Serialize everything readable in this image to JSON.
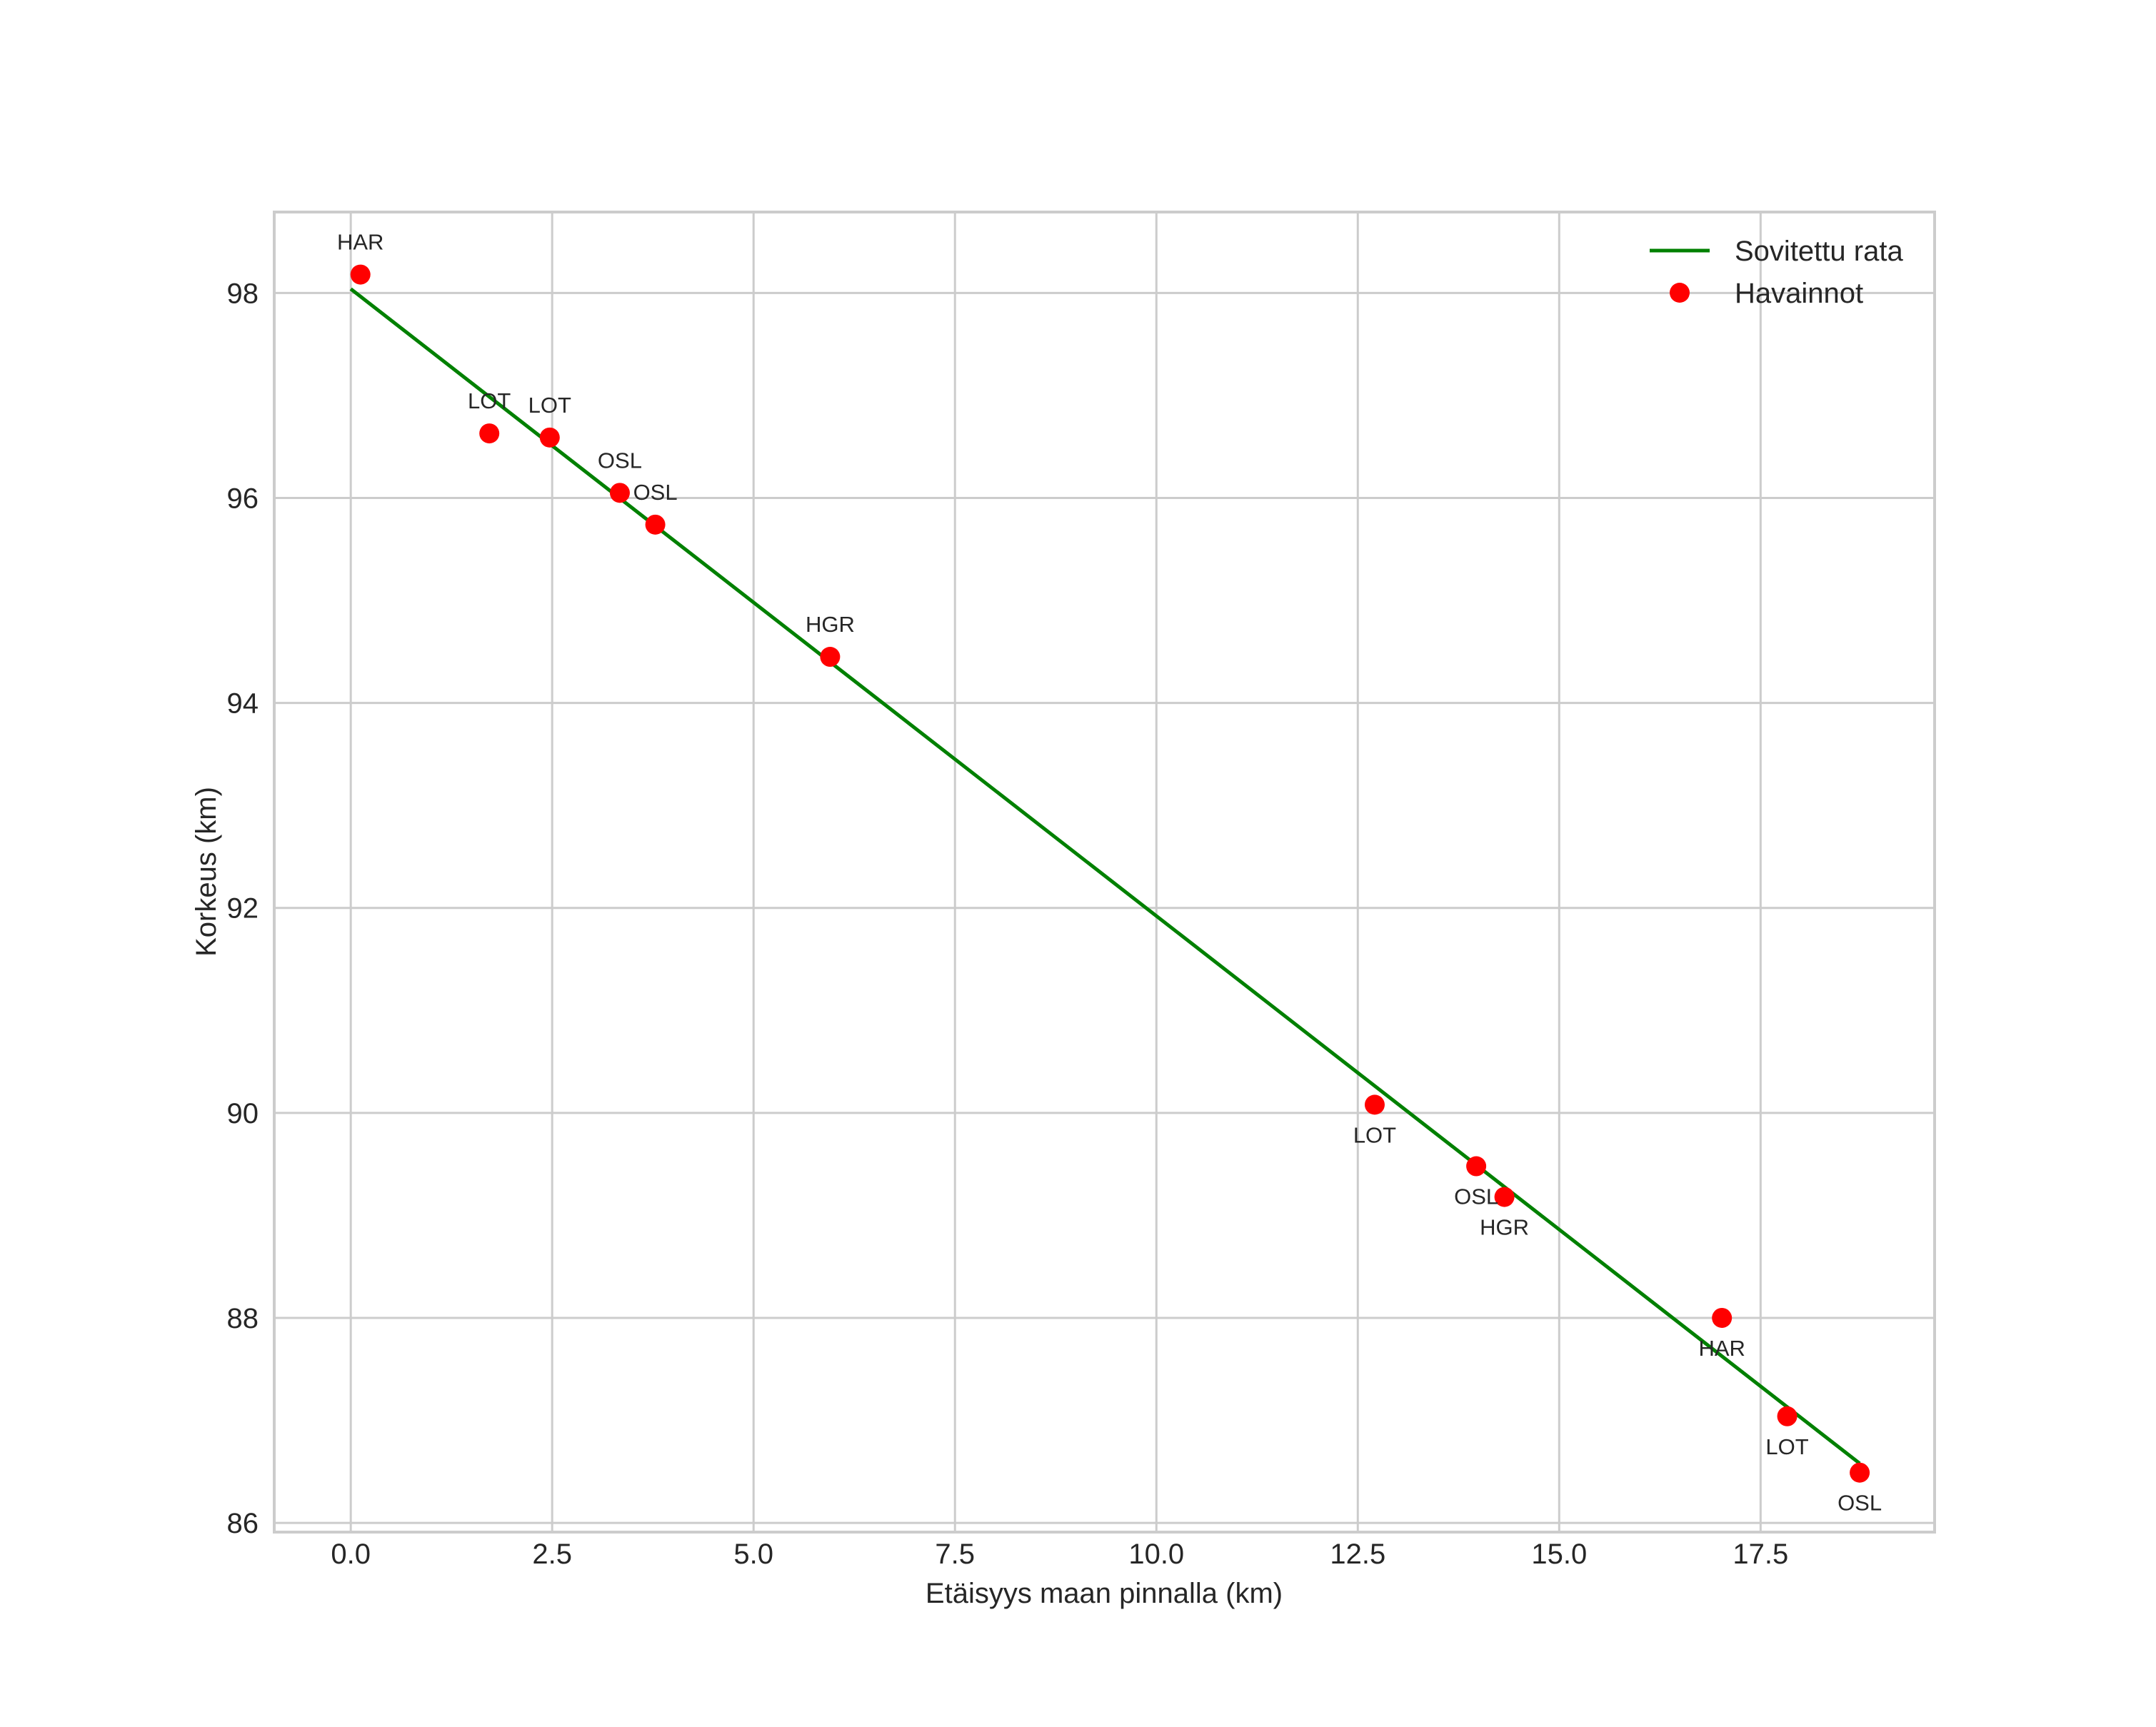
{
  "chart_data": {
    "type": "scatter",
    "title": "",
    "xlabel": "Etäisyys maan pinnalla (km)",
    "ylabel": "Korkeus (km)",
    "xlim": [
      -0.95,
      19.66
    ],
    "ylim": [
      85.91,
      98.79
    ],
    "xticks": [
      0.0,
      2.5,
      5.0,
      7.5,
      10.0,
      12.5,
      15.0,
      17.5
    ],
    "xtick_labels": [
      "0.0",
      "2.5",
      "5.0",
      "7.5",
      "10.0",
      "12.5",
      "15.0",
      "17.5"
    ],
    "yticks": [
      86,
      88,
      90,
      92,
      94,
      96,
      98
    ],
    "ytick_labels": [
      "86",
      "88",
      "90",
      "92",
      "94",
      "96",
      "98"
    ],
    "grid": true,
    "legend": {
      "position": "upper right",
      "entries": [
        {
          "label": "Sovitettu rata",
          "type": "line",
          "color": "#008000"
        },
        {
          "label": "Havainnot",
          "type": "marker",
          "color": "#ff0000"
        }
      ]
    },
    "series": [
      {
        "name": "Sovitettu rata",
        "type": "line",
        "color": "#008000",
        "x": [
          0.0,
          18.73
        ],
        "y": [
          98.04,
          86.58
        ]
      },
      {
        "name": "Havainnot",
        "type": "scatter",
        "color": "#ff0000",
        "points": [
          {
            "x": 0.12,
            "y": 98.18,
            "label": "HAR",
            "label_pos": "above"
          },
          {
            "x": 1.72,
            "y": 96.63,
            "label": "LOT",
            "label_pos": "above"
          },
          {
            "x": 2.47,
            "y": 96.59,
            "label": "LOT",
            "label_pos": "above"
          },
          {
            "x": 3.34,
            "y": 96.05,
            "label": "OSL",
            "label_pos": "above"
          },
          {
            "x": 3.78,
            "y": 95.74,
            "label": "OSL",
            "label_pos": "above"
          },
          {
            "x": 5.95,
            "y": 94.45,
            "label": "HGR",
            "label_pos": "above"
          },
          {
            "x": 12.71,
            "y": 90.08,
            "label": "LOT",
            "label_pos": "below"
          },
          {
            "x": 13.97,
            "y": 89.48,
            "label": "OSL",
            "label_pos": "below"
          },
          {
            "x": 14.32,
            "y": 89.18,
            "label": "HGR",
            "label_pos": "below"
          },
          {
            "x": 17.02,
            "y": 88.0,
            "label": "HAR",
            "label_pos": "below"
          },
          {
            "x": 17.83,
            "y": 87.04,
            "label": "LOT",
            "label_pos": "below"
          },
          {
            "x": 18.73,
            "y": 86.49,
            "label": "OSL",
            "label_pos": "below"
          }
        ]
      }
    ]
  },
  "colors": {
    "fit_line": "#008000",
    "observations": "#ff0000",
    "grid": "#cccccc",
    "text": "#262626"
  }
}
